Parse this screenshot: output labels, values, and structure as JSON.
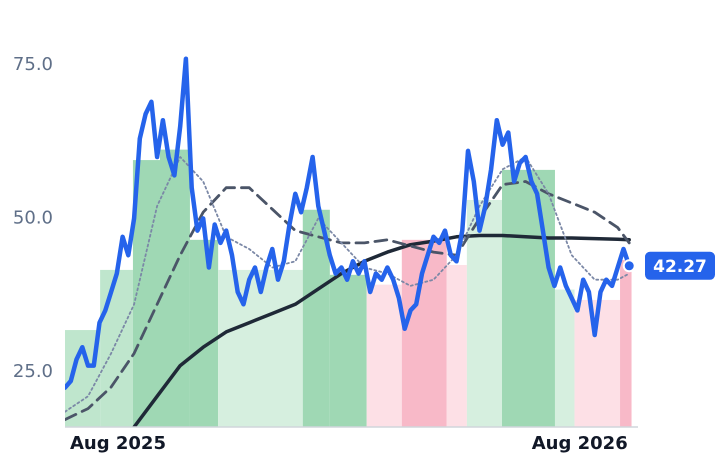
{
  "chart_data": {
    "type": "line",
    "xlim": [
      0,
      99
    ],
    "ylim": [
      16,
      82
    ],
    "xticks": [
      {
        "value": 9.2,
        "label": "Aug 2025"
      },
      {
        "value": 89.4,
        "label": "Aug 2026"
      }
    ],
    "yticks": [
      {
        "value": 25,
        "label": "25.0"
      },
      {
        "value": 50,
        "label": "50.0"
      },
      {
        "value": 75,
        "label": "75.0"
      }
    ],
    "x": [
      0,
      1,
      2,
      3,
      4,
      5,
      6,
      7,
      8,
      9,
      10,
      11,
      12,
      13,
      14,
      15,
      16,
      17,
      18,
      19,
      20,
      21,
      22,
      23,
      24,
      25,
      26,
      27,
      28,
      29,
      30,
      31,
      32,
      33,
      34,
      35,
      36,
      37,
      38,
      39,
      40,
      41,
      42,
      43,
      44,
      45,
      46,
      47,
      48,
      49,
      50,
      51,
      52,
      53,
      54,
      55,
      56,
      57,
      58,
      59,
      60,
      61,
      62,
      63,
      64,
      65,
      66,
      67,
      68,
      69,
      70,
      71,
      72,
      73,
      74,
      75,
      76,
      77,
      78,
      79,
      80,
      81,
      82,
      83,
      84,
      85,
      86,
      87,
      88,
      89,
      90,
      91,
      92,
      93,
      94,
      95,
      96,
      97,
      98
    ],
    "bands": [
      {
        "x": [
          0,
          6.1
        ],
        "value": 31.8,
        "color": "#bfe6cd"
      },
      {
        "x": [
          6.1,
          11.8
        ],
        "value": 41.6,
        "color": "#bfe6cd"
      },
      {
        "x": [
          11.8,
          16.5
        ],
        "value": 59.5,
        "color": "#9fd8b4"
      },
      {
        "x": [
          16.5,
          21.7
        ],
        "value": 61.2,
        "color": "#9fd8b4"
      },
      {
        "x": [
          21.7,
          26.6
        ],
        "value": 46.5,
        "color": "#9fd8b4"
      },
      {
        "x": [
          26.6,
          41.3
        ],
        "value": 41.6,
        "color": "#d6efdf"
      },
      {
        "x": [
          41.3,
          46
        ],
        "value": 51.4,
        "color": "#9fd8b4"
      },
      {
        "x": [
          46,
          52.4
        ],
        "value": 40.8,
        "color": "#9fd8b4"
      },
      {
        "x": [
          52.4,
          58.5
        ],
        "value": 39.2,
        "color": "#fde0e6"
      },
      {
        "x": [
          58.5,
          66.3
        ],
        "value": 46.5,
        "color": "#f8b9c8"
      },
      {
        "x": [
          66.3,
          69.8
        ],
        "value": 42.4,
        "color": "#fde0e6"
      },
      {
        "x": [
          69.8,
          75.9
        ],
        "value": 53,
        "color": "#d6efdf"
      },
      {
        "x": [
          75.9,
          85.1
        ],
        "value": 57.9,
        "color": "#9fd8b4"
      },
      {
        "x": [
          85.1,
          88.5
        ],
        "value": 38.4,
        "color": "#d6efdf"
      },
      {
        "x": [
          88.5,
          96.4
        ],
        "value": 36.7,
        "color": "#fde0e6"
      },
      {
        "x": [
          96.4,
          98.4
        ],
        "value": 43.2,
        "color": "#f8b9c8"
      }
    ],
    "series": [
      {
        "color": "#1f2937",
        "style": "solid",
        "x": [
          12,
          16,
          20,
          24,
          28,
          32,
          36,
          40,
          44,
          48,
          52,
          56,
          60,
          64,
          68,
          72,
          76,
          80,
          84,
          88,
          92,
          96,
          98
        ],
        "values": [
          16,
          21,
          26,
          29,
          31.5,
          33,
          34.5,
          36,
          38.5,
          41,
          43,
          44.5,
          45.7,
          46.3,
          47,
          47.2,
          47.2,
          47,
          46.8,
          46.8,
          46.7,
          46.6,
          46.5
        ]
      },
      {
        "color": "#4b5568",
        "style": "dashed",
        "x": [
          0,
          4,
          8,
          12,
          16,
          20,
          24,
          28,
          32,
          36,
          40,
          44,
          48,
          52,
          56,
          60,
          64,
          68,
          72,
          76,
          80,
          84,
          88,
          92,
          96,
          98
        ],
        "values": [
          17.2,
          19,
          22.5,
          28,
          36,
          44,
          51,
          55,
          55,
          51.5,
          48,
          47,
          46,
          46,
          46.5,
          45.5,
          44.5,
          44,
          50,
          55.5,
          56,
          54,
          52.5,
          51,
          48.5,
          46
        ]
      },
      {
        "color": "#7b88a6",
        "style": "dotted",
        "x": [
          0,
          4,
          8,
          12,
          16,
          20,
          24,
          28,
          32,
          36,
          40,
          44,
          48,
          52,
          56,
          60,
          64,
          68,
          72,
          76,
          80,
          84,
          88,
          92,
          96,
          98
        ],
        "values": [
          18.5,
          21,
          28,
          36,
          52,
          60,
          56,
          47,
          45,
          42,
          43,
          50,
          46,
          42,
          41,
          39,
          40,
          44,
          52,
          58,
          60,
          54,
          44,
          40,
          40,
          41
        ]
      },
      {
        "color": "#2563eb",
        "style": "thick",
        "values": [
          22.4,
          23.5,
          27,
          29,
          26,
          26,
          33,
          35,
          38,
          41,
          47,
          44,
          50,
          63,
          67,
          69,
          60,
          66,
          60,
          57,
          65,
          76,
          55,
          48,
          50,
          42,
          49,
          46,
          48,
          44,
          38,
          36,
          40,
          42,
          38,
          42,
          45,
          40,
          43,
          49,
          54,
          51,
          55,
          60,
          52,
          48,
          44,
          41,
          42,
          40,
          43,
          41,
          43,
          38,
          41,
          40,
          42,
          40,
          37,
          32,
          35,
          36,
          41,
          44,
          47,
          46,
          48,
          44,
          43,
          48,
          61,
          56,
          48,
          52,
          58,
          66,
          62,
          64,
          56,
          59,
          60,
          56,
          54,
          48,
          42,
          39,
          42,
          39,
          37,
          35,
          40,
          38,
          31,
          38,
          40,
          39,
          42,
          45,
          42.27
        ]
      }
    ]
  }
}
